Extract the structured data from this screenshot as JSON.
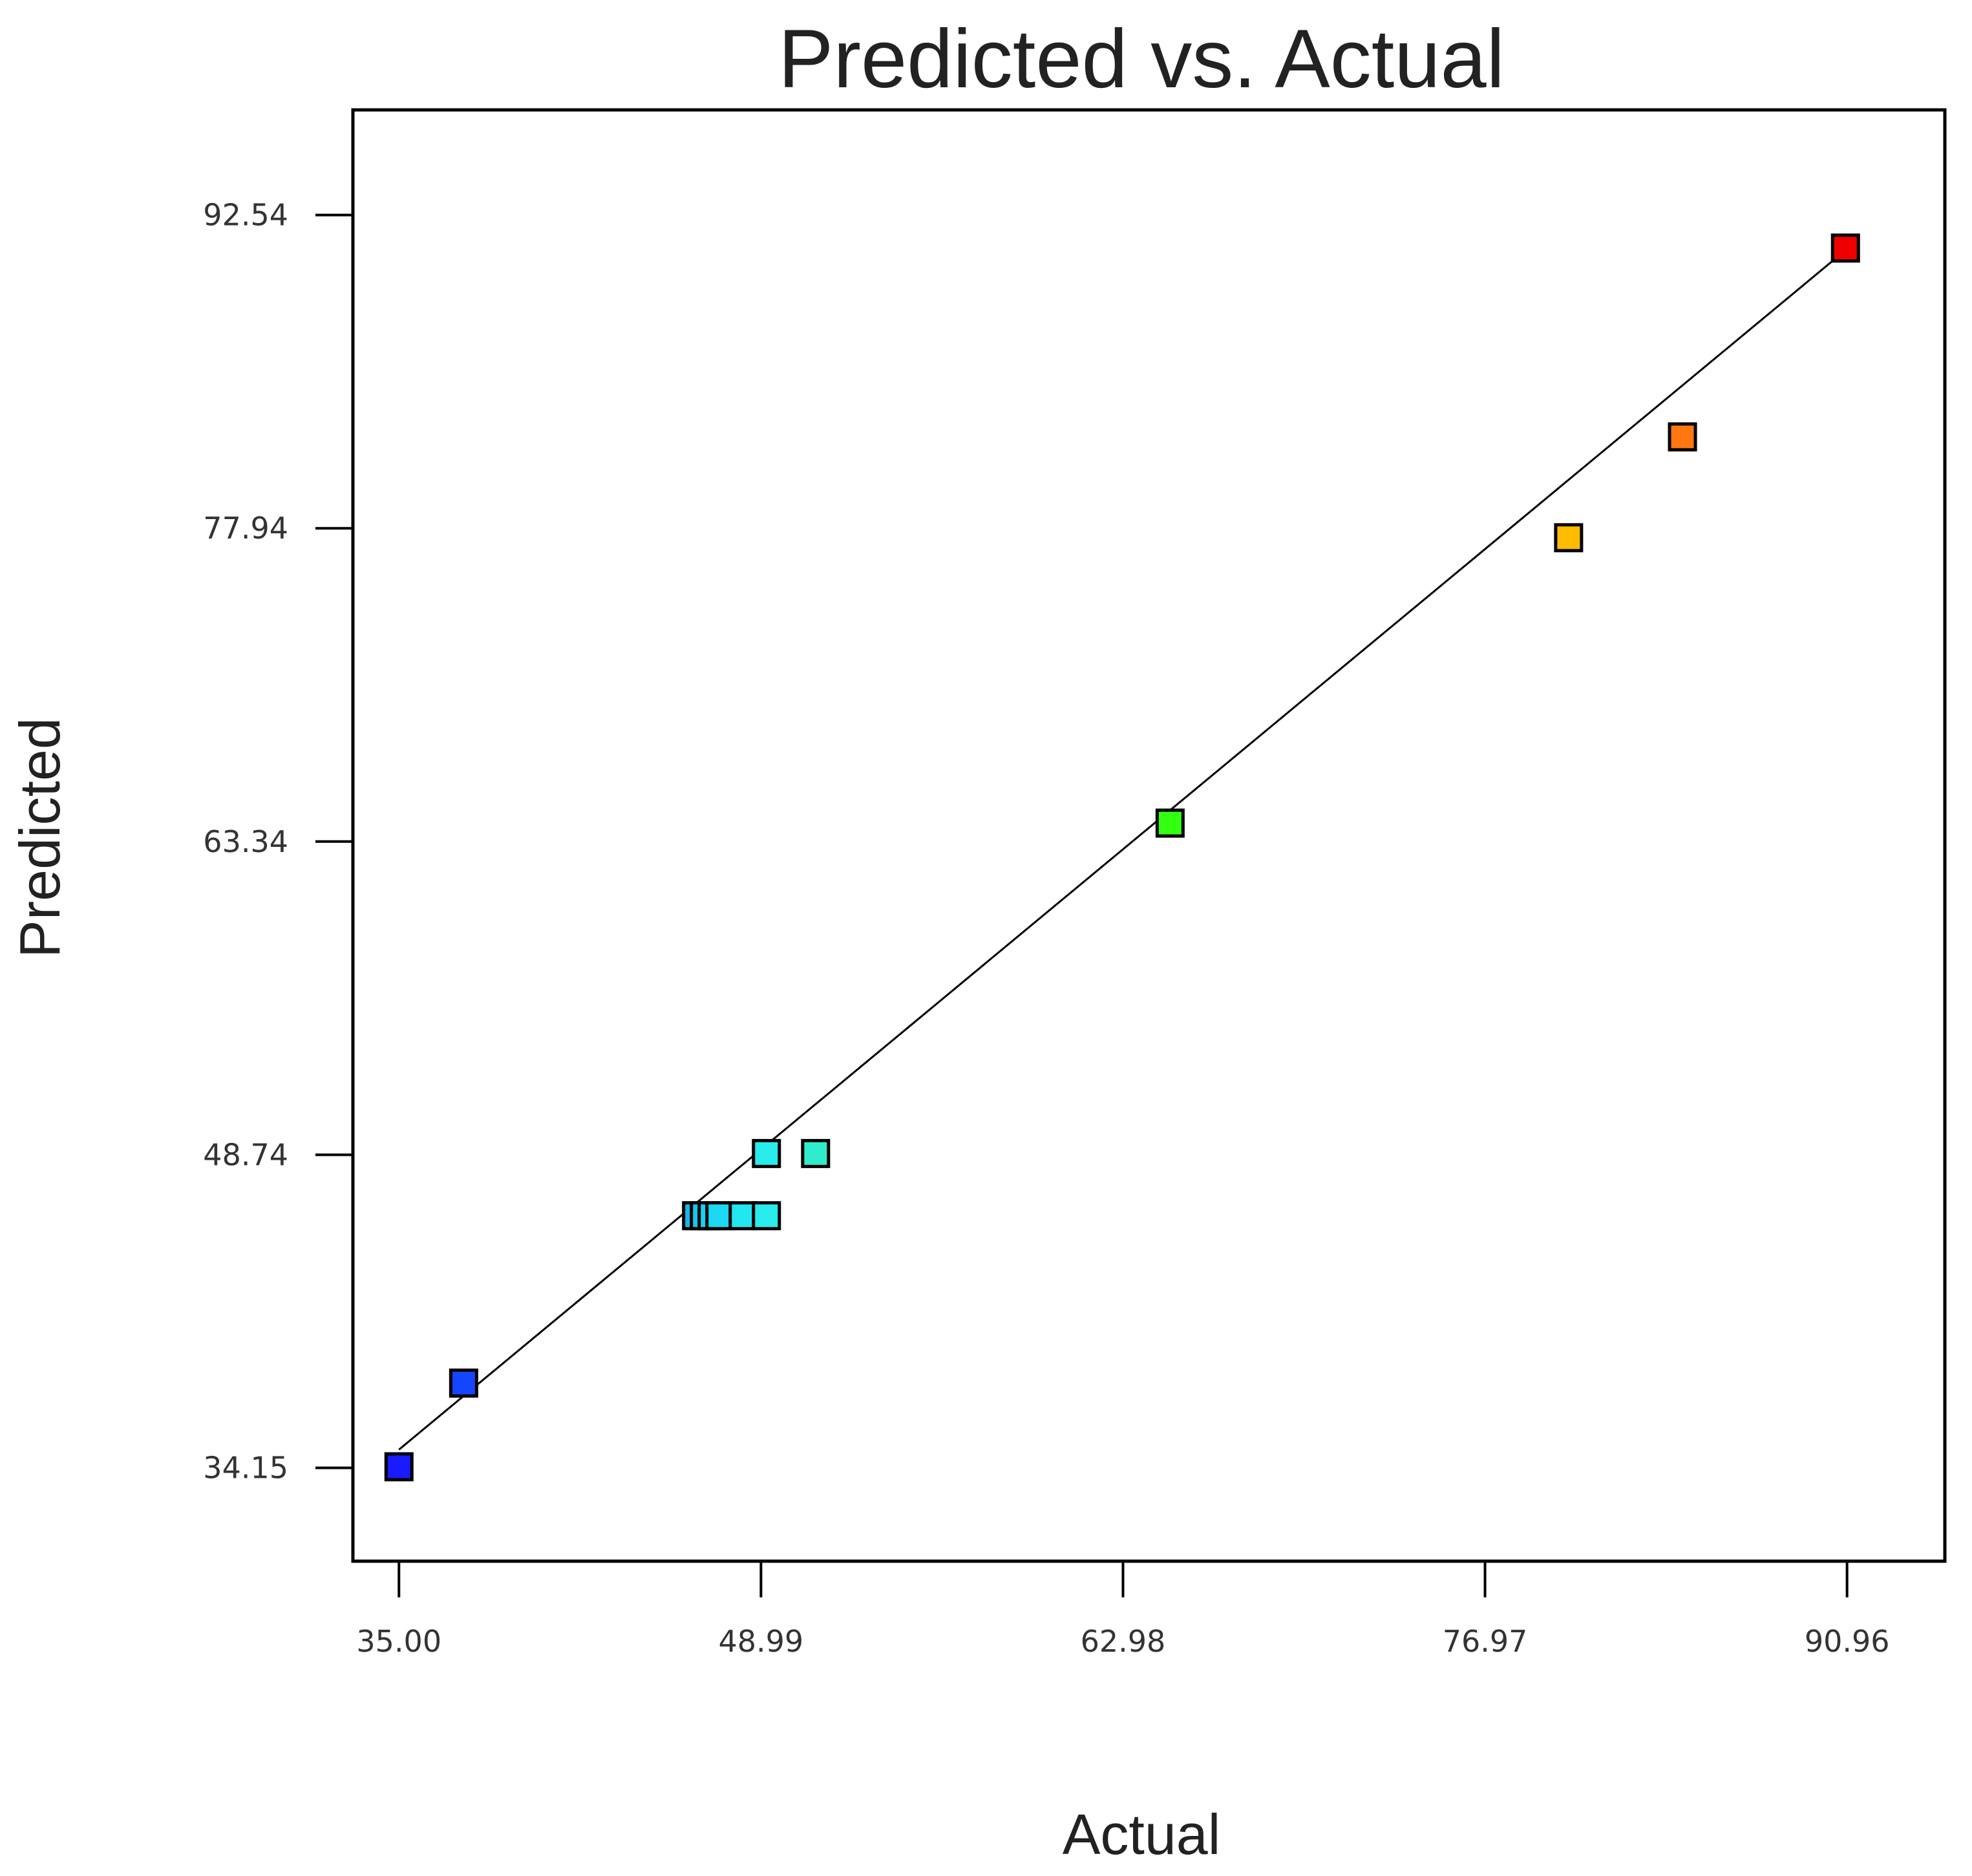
{
  "chart_data": {
    "type": "scatter",
    "title": "Predicted vs. Actual",
    "xlabel": "Actual",
    "ylabel": "Predicted",
    "xlim": [
      33.22,
      94.74
    ],
    "ylim": [
      29.8,
      97.44
    ],
    "x_ticks": [
      {
        "value": 35.0,
        "label": "35.00"
      },
      {
        "value": 48.99,
        "label": "48.99"
      },
      {
        "value": 62.98,
        "label": "62.98"
      },
      {
        "value": 76.97,
        "label": "76.97"
      },
      {
        "value": 90.96,
        "label": "90.96"
      }
    ],
    "y_ticks": [
      {
        "value": 92.54,
        "label": "92.54"
      },
      {
        "value": 77.94,
        "label": "77.94"
      },
      {
        "value": 63.34,
        "label": "63.34"
      },
      {
        "value": 48.74,
        "label": "48.74"
      },
      {
        "value": 34.15,
        "label": "34.15"
      }
    ],
    "grid": false,
    "reference_line": {
      "from": [
        35.0,
        35.0
      ],
      "to": [
        90.96,
        90.96
      ],
      "color": "#000000"
    },
    "points": [
      {
        "x": 35.0,
        "y": 34.2,
        "color": "#1a1aff"
      },
      {
        "x": 37.5,
        "y": 38.1,
        "color": "#1446ff"
      },
      {
        "x": 46.5,
        "y": 45.9,
        "color": "#16b8e8"
      },
      {
        "x": 46.8,
        "y": 45.9,
        "color": "#18c6ec"
      },
      {
        "x": 47.1,
        "y": 45.9,
        "color": "#1ad0f0"
      },
      {
        "x": 47.4,
        "y": 45.9,
        "color": "#1cd8f2"
      },
      {
        "x": 48.3,
        "y": 45.9,
        "color": "#22e6f0"
      },
      {
        "x": 49.2,
        "y": 45.9,
        "color": "#28ecec"
      },
      {
        "x": 49.2,
        "y": 48.8,
        "color": "#28ecec"
      },
      {
        "x": 51.1,
        "y": 48.8,
        "color": "#30eccc"
      },
      {
        "x": 64.8,
        "y": 64.2,
        "color": "#33ff11"
      },
      {
        "x": 80.2,
        "y": 77.5,
        "color": "#ffbb00"
      },
      {
        "x": 84.6,
        "y": 82.2,
        "color": "#ff7711"
      },
      {
        "x": 90.9,
        "y": 91.0,
        "color": "#ee0000"
      }
    ]
  }
}
